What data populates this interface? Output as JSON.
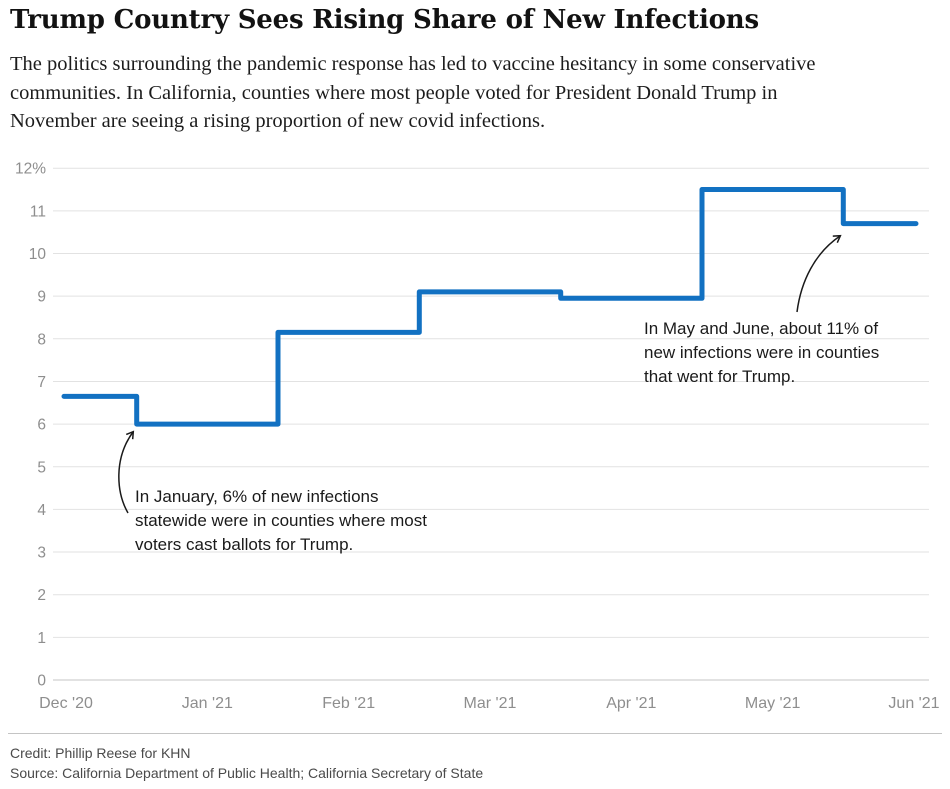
{
  "chart_data": {
    "type": "line",
    "step": true,
    "title": "Trump Country Sees Rising Share of New Infections",
    "subtitle": "The politics surrounding the pandemic response has led to vaccine hesitancy in some conservative communities. In California, counties where most people voted for President Donald Trump in November are seeing a rising proportion of new covid infections.",
    "subtitle_lines": [
      "The politics surrounding the pandemic response has led to vaccine hesitancy in some conservative",
      "communities. In California, counties where most people voted for President Donald Trump in",
      "November are seeing a rising proportion of new covid infections."
    ],
    "x": [
      "Dec '20",
      "Jan '21",
      "Feb '21",
      "Mar '21",
      "Apr '21",
      "May '21",
      "Jun '21"
    ],
    "values": [
      6.65,
      6.0,
      8.15,
      9.1,
      8.95,
      11.5,
      10.7
    ],
    "xlabel": "",
    "ylabel": "",
    "ylim": [
      0,
      12
    ],
    "ytick_labels": [
      "12%",
      "11",
      "10",
      "9",
      "8",
      "7",
      "6",
      "5",
      "4",
      "3",
      "2",
      "1",
      "0"
    ],
    "grid": "horizontal",
    "legend": "none",
    "colors": {
      "line": "#1271c2",
      "grid": "#e2e2e2",
      "baseline": "#c6c6c6",
      "axis_text": "#8e8e8e",
      "annotation_text": "#1a1a1a"
    },
    "annotations": [
      {
        "target": "January step at 6%",
        "lines": [
          "In January, 6% of new infections",
          "statewide were in counties where most",
          "voters cast ballots for Trump."
        ]
      },
      {
        "target": "May-June step near 11%",
        "lines": [
          "In May and June, about 11% of",
          "new infections were in counties",
          "that went for Trump."
        ]
      }
    ]
  },
  "footer": {
    "credit": "Credit: Phillip Reese for KHN",
    "source": "Source: California Department of Public Health; California Secretary of State"
  }
}
